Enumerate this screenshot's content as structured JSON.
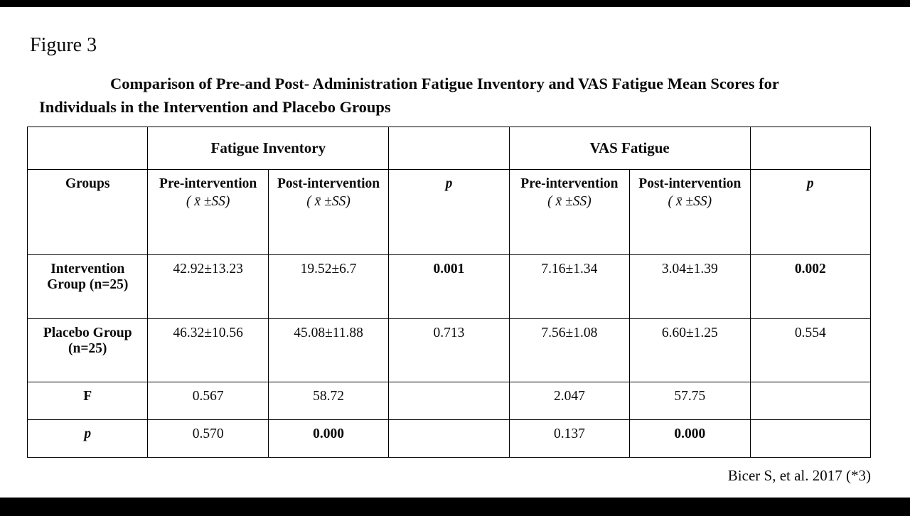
{
  "figure_label": "Figure 3",
  "title": "Comparison of Pre-and Post- Administration Fatigue Inventory and VAS Fatigue Mean Scores for Individuals in the Intervention and Placebo Groups",
  "citation": "Bicer S, et al. 2017 (*3)",
  "headers": {
    "groups": "Groups",
    "fatigue_inventory": "Fatigue Inventory",
    "vas_fatigue": "VAS Fatigue",
    "pre": "Pre-intervention",
    "post": "Post-intervention",
    "stat": "( x̄ ±SS)",
    "p": "p"
  },
  "chart_data": {
    "type": "table",
    "title": "Comparison of Pre-and Post- Administration Fatigue Inventory and VAS Fatigue Mean Scores for Individuals in the Intervention and Placebo Groups",
    "column_groups": [
      "",
      "Fatigue Inventory",
      "Fatigue Inventory",
      "",
      "VAS Fatigue",
      "VAS Fatigue",
      ""
    ],
    "columns": [
      "Groups",
      "Pre-intervention (x̄ ±SS)",
      "Post-intervention (x̄ ±SS)",
      "p",
      "Pre-intervention (x̄ ±SS)",
      "Post-intervention (x̄ ±SS)",
      "p"
    ],
    "rows": [
      [
        "Intervention Group (n=25)",
        "42.92±13.23",
        "19.52±6.7",
        "0.001",
        "7.16±1.34",
        "3.04±1.39",
        "0.002"
      ],
      [
        "Placebo Group (n=25)",
        "46.32±10.56",
        "45.08±11.88",
        "0.713",
        "7.56±1.08",
        "6.60±1.25",
        "0.554"
      ],
      [
        "F",
        "0.567",
        "58.72",
        "",
        "2.047",
        "57.75",
        ""
      ],
      [
        "p",
        "0.570",
        "0.000",
        "",
        "0.137",
        "0.000",
        ""
      ]
    ],
    "bold_cells_note": "p-values 0.001, 0.002 and post-intervention p 0.000 (both scales) are bold (significant)"
  }
}
